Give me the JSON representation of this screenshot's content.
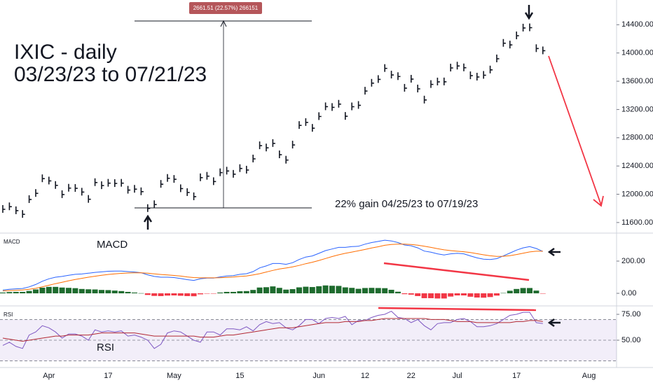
{
  "chart_data": [
    {
      "type": "stock",
      "title": "IXIC - daily",
      "subtitle": "03/23/23 to 07/21/23",
      "annotations": [
        "22% gain 04/25/23 to 07/19/23",
        "2661.51 (22.57%) 266151"
      ],
      "color": "#131722",
      "categories": [
        null,
        null,
        null,
        null,
        null,
        null,
        null,
        "Apr",
        null,
        null,
        null,
        null,
        null,
        null,
        null,
        null,
        "17",
        null,
        null,
        null,
        null,
        null,
        null,
        null,
        null,
        null,
        "May",
        null,
        null,
        null,
        null,
        null,
        null,
        null,
        null,
        null,
        "15",
        null,
        null,
        null,
        null,
        null,
        null,
        null,
        null,
        null,
        null,
        null,
        "Jun",
        null,
        null,
        null,
        null,
        null,
        null,
        "12",
        null,
        null,
        null,
        null,
        null,
        null,
        "22",
        null,
        null,
        null,
        null,
        null,
        null,
        "Jul",
        null,
        null,
        null,
        null,
        null,
        null,
        null,
        null,
        "17",
        null,
        null,
        null,
        null,
        null,
        null,
        null,
        null,
        null,
        null,
        "Aug"
      ],
      "values": [
        11787,
        11824,
        11768,
        11716,
        11926,
        12013,
        12221,
        12189,
        12126,
        11996,
        12087,
        12084,
        12031,
        11929,
        12166,
        12123,
        12157,
        12153,
        12157,
        12059,
        12072,
        12037,
        11799,
        11854,
        12142,
        12226,
        12212,
        12080,
        12025,
        11966,
        12235,
        12256,
        12180,
        12306,
        12329,
        12284,
        12365,
        12343,
        12501,
        12688,
        12657,
        12720,
        12560,
        12484,
        12698,
        12975,
        13017,
        12935,
        13101,
        13240,
        13230,
        13276,
        13104,
        13239,
        13259,
        13461,
        13573,
        13626,
        13782,
        13689,
        13667,
        13502,
        13630,
        13492,
        13335,
        13555,
        13591,
        13592,
        13788,
        13816,
        13791,
        13679,
        13660,
        13685,
        13761,
        13918,
        14138,
        14114,
        14244,
        14354,
        14358,
        14063,
        14032,
        null,
        null,
        null,
        null,
        null,
        null,
        null
      ],
      "ylim": [
        11460,
        14750
      ],
      "yticks": [
        {
          "value": 11600,
          "label": "11600.00"
        },
        {
          "value": 12000,
          "label": "12000.00"
        },
        {
          "value": 12400,
          "label": "12400.00"
        },
        {
          "value": 12800,
          "label": "12800.00"
        },
        {
          "value": 13200,
          "label": "13200.00"
        },
        {
          "value": 13600,
          "label": "13600.00"
        },
        {
          "value": 14000,
          "label": "14000.00"
        },
        {
          "value": 14400,
          "label": "14400.00"
        }
      ]
    },
    {
      "type": "macd",
      "title": "MACD",
      "annotation": "MACD",
      "series": [
        {
          "color": "#2962ff",
          "values": [
            20,
            25,
            28,
            30,
            40,
            55,
            75,
            90,
            100,
            105,
            112,
            118,
            120,
            125,
            130,
            133,
            137,
            138,
            138,
            135,
            132,
            128,
            115,
            105,
            100,
            100,
            98,
            92,
            85,
            80,
            90,
            95,
            95,
            102,
            108,
            110,
            118,
            122,
            135,
            158,
            170,
            185,
            185,
            180,
            190,
            210,
            225,
            232,
            248,
            265,
            275,
            285,
            285,
            290,
            292,
            305,
            315,
            322,
            330,
            325,
            315,
            300,
            295,
            282,
            262,
            255,
            245,
            238,
            245,
            248,
            245,
            232,
            220,
            212,
            210,
            215,
            232,
            250,
            268,
            282,
            290,
            278,
            260,
            null,
            null,
            null,
            null,
            null,
            null,
            null
          ]
        },
        {
          "color": "#ff6d00",
          "values": [
            15,
            17,
            19,
            21,
            25,
            31,
            40,
            50,
            60,
            69,
            78,
            86,
            93,
            100,
            106,
            112,
            117,
            121,
            124,
            126,
            127,
            127,
            125,
            121,
            117,
            114,
            111,
            107,
            102,
            98,
            96,
            96,
            96,
            97,
            99,
            101,
            105,
            108,
            114,
            122,
            132,
            142,
            151,
            157,
            164,
            173,
            184,
            193,
            204,
            216,
            228,
            239,
            248,
            256,
            264,
            272,
            281,
            289,
            298,
            303,
            305,
            305,
            303,
            299,
            292,
            285,
            277,
            270,
            265,
            261,
            258,
            253,
            246,
            239,
            233,
            229,
            230,
            234,
            241,
            249,
            257,
            261,
            261,
            null,
            null,
            null,
            null,
            null,
            null,
            null
          ]
        }
      ],
      "histogram": [
        5,
        8,
        9,
        9,
        15,
        24,
        35,
        40,
        40,
        36,
        34,
        32,
        27,
        25,
        24,
        21,
        20,
        17,
        14,
        9,
        5,
        1,
        -10,
        -16,
        -17,
        -14,
        -13,
        -15,
        -17,
        -18,
        -6,
        -1,
        -1,
        5,
        9,
        9,
        13,
        14,
        21,
        36,
        38,
        43,
        34,
        23,
        26,
        37,
        41,
        39,
        44,
        49,
        47,
        46,
        37,
        34,
        28,
        33,
        34,
        33,
        32,
        22,
        10,
        -5,
        -8,
        -17,
        -30,
        -30,
        -32,
        -32,
        -20,
        -13,
        -13,
        -21,
        -26,
        -27,
        -23,
        -14,
        2,
        16,
        27,
        33,
        33,
        17,
        -1,
        null,
        null,
        null,
        null,
        null,
        null,
        null
      ],
      "histogram_colors": [
        "#1e6b2e",
        "#f23645"
      ],
      "ylim": [
        -78,
        365
      ],
      "yticks": [
        {
          "value": 0,
          "label": "0.00"
        },
        {
          "value": 200,
          "label": "200.00"
        }
      ]
    },
    {
      "type": "rsi",
      "title": "RSI",
      "annotation": "RSI",
      "series": [
        {
          "color": "#7e57c2",
          "values": [
            45,
            48,
            44,
            42,
            55,
            58,
            64,
            62,
            58,
            52,
            56,
            56,
            54,
            50,
            60,
            58,
            59,
            58,
            59,
            54,
            55,
            53,
            50,
            42,
            46,
            57,
            59,
            58,
            54,
            50,
            48,
            58,
            58,
            55,
            61,
            61,
            60,
            63,
            59,
            65,
            68,
            66,
            67,
            62,
            60,
            64,
            70,
            70,
            66,
            71,
            72,
            71,
            73,
            65,
            69,
            69,
            72,
            74,
            75,
            78,
            72,
            71,
            67,
            70,
            64,
            60,
            66,
            67,
            67,
            70,
            71,
            68,
            63,
            63,
            64,
            66,
            70,
            74,
            75,
            77,
            77,
            67,
            66,
            null,
            null,
            null,
            null,
            null,
            null,
            null
          ]
        },
        {
          "color": "#b22833",
          "values": [
            52,
            51,
            50,
            49,
            50,
            51,
            52,
            53,
            54,
            54,
            55,
            55,
            55,
            55,
            56,
            57,
            57,
            57,
            57,
            57,
            57,
            56,
            55,
            54,
            54,
            54,
            54,
            54,
            54,
            54,
            53,
            53,
            53,
            54,
            55,
            55,
            56,
            57,
            58,
            59,
            60,
            61,
            62,
            62,
            62,
            63,
            64,
            65,
            66,
            67,
            67,
            67,
            68,
            68,
            68,
            69,
            69,
            70,
            71,
            71,
            71,
            71,
            71,
            71,
            71,
            70,
            70,
            70,
            69,
            68,
            68,
            68,
            67,
            67,
            67,
            67,
            67,
            67,
            68,
            68,
            69,
            69,
            68,
            null,
            null,
            null,
            null,
            null,
            null,
            null
          ]
        }
      ],
      "bands": [
        70,
        50,
        30
      ],
      "band_fill": "#7e57c2",
      "ylim": [
        23.6,
        81.8
      ],
      "yticks": [
        {
          "value": 50,
          "label": "50.00"
        },
        {
          "value": 75,
          "label": "75.00"
        }
      ]
    }
  ]
}
